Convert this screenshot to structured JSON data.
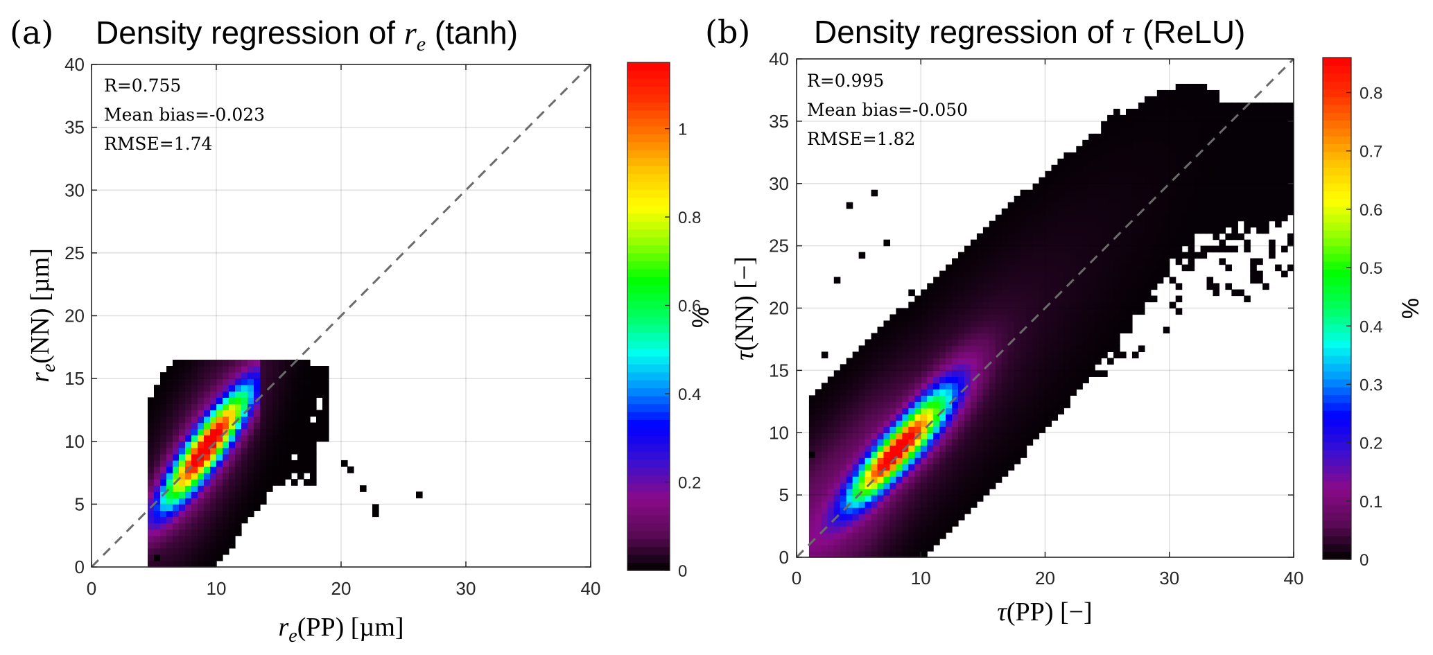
{
  "chart_data": [
    {
      "type": "heatmap",
      "panel_tag": "(a)",
      "title_prefix": "Density regression of ",
      "title_symbol": "r",
      "title_subscript": "e",
      "title_suffix": " (tanh)",
      "xlabel_symbol": "r",
      "xlabel_subscript": "e",
      "xlabel_text": "(PP) [µm]",
      "ylabel_symbol": "r",
      "ylabel_subscript": "e",
      "ylabel_text": "(NN) [µm]",
      "xlim": [
        0,
        40
      ],
      "ylim": [
        0,
        40
      ],
      "xticks": [
        "0",
        "10",
        "20",
        "30",
        "40"
      ],
      "yticks": [
        "0",
        "5",
        "10",
        "15",
        "20",
        "25",
        "30",
        "35",
        "40"
      ],
      "xtick_values": [
        0,
        10,
        20,
        30,
        40
      ],
      "ytick_values": [
        0,
        5,
        10,
        15,
        20,
        25,
        30,
        35,
        40
      ],
      "grid": true,
      "bin_size": 0.5,
      "one_to_one_line": true,
      "stats": [
        "R=0.755",
        "Mean bias=-0.023",
        "RMSE=1.74"
      ],
      "colorbar": {
        "label": "%",
        "range": [
          0,
          1.15
        ],
        "ticks": [
          "0",
          "0.2",
          "0.4",
          "0.6",
          "0.8",
          "1"
        ],
        "tick_values": [
          0,
          0.2,
          0.4,
          0.6,
          0.8,
          1.0
        ],
        "colormap": [
          "#000000",
          "#5a0a55",
          "#8a0a8a",
          "#3a10d0",
          "#0000ff",
          "#0090ff",
          "#00ffee",
          "#00ff60",
          "#00ff00",
          "#90ff00",
          "#ffff00",
          "#ffc800",
          "#ff7a00",
          "#ff3000",
          "#ff0000"
        ]
      },
      "density_model": {
        "peak_x": 7.5,
        "peak_y": 7.5,
        "peak_value": 1.15,
        "core_slope": 1.2,
        "core_x_range": [
          6,
          13
        ],
        "core_width": 0.9,
        "halo_width": 2.6,
        "x_support": [
          4.5,
          13.5
        ],
        "y_support": [
          0,
          16.5
        ],
        "outlier_region": {
          "x": [
            13,
            25
          ],
          "y": [
            4,
            16
          ]
        },
        "isolated_points": [
          [
            26,
            5.5
          ],
          [
            22.5,
            4.5
          ],
          [
            22.5,
            4
          ],
          [
            20,
            8
          ],
          [
            20.5,
            7.5
          ],
          [
            21.5,
            6
          ],
          [
            5,
            0.5
          ]
        ]
      }
    },
    {
      "type": "heatmap",
      "panel_tag": "(b)",
      "title_prefix": "Density regression of ",
      "title_symbol": "τ",
      "title_subscript": "",
      "title_suffix": " (ReLU)",
      "xlabel_symbol": "τ",
      "xlabel_subscript": "",
      "xlabel_text": "(PP) [−]",
      "ylabel_symbol": "τ",
      "ylabel_subscript": "",
      "ylabel_text": "(NN) [−]",
      "xlim": [
        0,
        40
      ],
      "ylim": [
        0,
        40
      ],
      "xticks": [
        "0",
        "10",
        "20",
        "30",
        "40"
      ],
      "yticks": [
        "0",
        "5",
        "10",
        "15",
        "20",
        "25",
        "30",
        "35",
        "40"
      ],
      "xtick_values": [
        0,
        10,
        20,
        30,
        40
      ],
      "ytick_values": [
        0,
        5,
        10,
        15,
        20,
        25,
        30,
        35,
        40
      ],
      "grid": true,
      "bin_size": 0.5,
      "one_to_one_line": true,
      "stats": [
        "R=0.995",
        "Mean bias=-0.050",
        "RMSE=1.82"
      ],
      "colorbar": {
        "label": "%",
        "range": [
          0,
          0.86
        ],
        "ticks": [
          "0",
          "0.1",
          "0.2",
          "0.3",
          "0.4",
          "0.5",
          "0.6",
          "0.7",
          "0.8"
        ],
        "tick_values": [
          0,
          0.1,
          0.2,
          0.3,
          0.4,
          0.5,
          0.6,
          0.7,
          0.8
        ],
        "colormap": [
          "#000000",
          "#5a0a55",
          "#8a0a8a",
          "#3a10d0",
          "#0000ff",
          "#0090ff",
          "#00ffee",
          "#00ff60",
          "#00ff00",
          "#90ff00",
          "#ffff00",
          "#ffc800",
          "#ff7a00",
          "#ff3000",
          "#ff0000"
        ]
      },
      "density_model": {
        "peak_x": 8,
        "peak_y": 8.5,
        "peak_value": 0.86,
        "core_slope": 1.0,
        "core_x_range": [
          1,
          16
        ],
        "core_width": 0.9,
        "halo_width": 3.2,
        "x_support": [
          1,
          40
        ],
        "y_support": [
          0,
          36.5
        ],
        "saturation_y": 33,
        "isolated_points": [
          [
            4,
            28
          ],
          [
            6,
            29
          ],
          [
            5,
            24
          ],
          [
            7,
            25
          ],
          [
            3,
            22
          ],
          [
            9,
            21
          ],
          [
            2,
            16
          ],
          [
            1,
            8
          ],
          [
            33,
            22
          ],
          [
            36,
            31
          ],
          [
            30,
            35.5
          ],
          [
            34.5,
            36
          ]
        ]
      }
    }
  ]
}
